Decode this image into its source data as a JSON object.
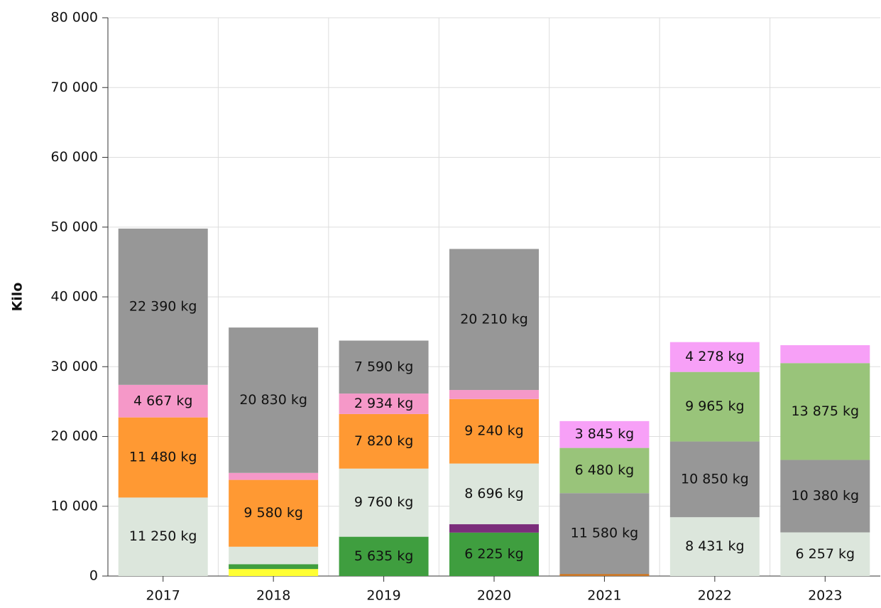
{
  "chart_data": {
    "type": "stacked_bar",
    "y_label": "Kilo",
    "categories": [
      "2017",
      "2018",
      "2019",
      "2020",
      "2021",
      "2022",
      "2023"
    ],
    "ylim": [
      0,
      80000
    ],
    "yticks": [
      {
        "value": 0,
        "label": "0"
      },
      {
        "value": 10000,
        "label": "10 000"
      },
      {
        "value": 20000,
        "label": "20 000"
      },
      {
        "value": 30000,
        "label": "30 000"
      },
      {
        "value": 40000,
        "label": "40 000"
      },
      {
        "value": 50000,
        "label": "50 000"
      },
      {
        "value": 60000,
        "label": "60 000"
      },
      {
        "value": 70000,
        "label": "70 000"
      },
      {
        "value": 80000,
        "label": "80 000"
      }
    ],
    "grid": true,
    "series": [
      {
        "color": "#ffff33",
        "values": [
          null,
          1000,
          null,
          null,
          null,
          null,
          null
        ],
        "value_labels": [
          null,
          null,
          null,
          null,
          null,
          null,
          null
        ]
      },
      {
        "color": "#3f9e3f",
        "values": [
          null,
          700,
          5635,
          6225,
          null,
          null,
          null
        ],
        "value_labels": [
          null,
          null,
          "5 635 kg",
          "6 225 kg",
          null,
          null,
          null
        ]
      },
      {
        "color": "#7b2d7b",
        "values": [
          null,
          null,
          null,
          1200,
          null,
          null,
          null
        ],
        "value_labels": [
          null,
          null,
          null,
          null,
          null,
          null,
          null
        ]
      },
      {
        "color": "#c8782a",
        "values": [
          null,
          null,
          null,
          null,
          300,
          null,
          null
        ],
        "value_labels": [
          null,
          null,
          null,
          null,
          null,
          null,
          null
        ]
      },
      {
        "color": "#dce6dc",
        "values": [
          11250,
          2500,
          9760,
          8696,
          null,
          8431,
          6257
        ],
        "value_labels": [
          "11 250 kg",
          null,
          "9 760 kg",
          "8 696 kg",
          null,
          "8 431 kg",
          "6 257 kg"
        ]
      },
      {
        "color": "#ff9933",
        "values": [
          11480,
          9580,
          7820,
          9240,
          null,
          null,
          null
        ],
        "value_labels": [
          "11 480 kg",
          "9 580 kg",
          "7 820 kg",
          "9 240 kg",
          null,
          null,
          null
        ]
      },
      {
        "color": "#f598c8",
        "values": [
          4667,
          1000,
          2934,
          1300,
          null,
          null,
          null
        ],
        "value_labels": [
          "4 667 kg",
          null,
          "2 934 kg",
          null,
          null,
          null,
          null
        ]
      },
      {
        "color": "#979797",
        "values": [
          22390,
          20830,
          7590,
          20210,
          11580,
          10850,
          10380
        ],
        "value_labels": [
          "22 390 kg",
          "20 830 kg",
          "7 590 kg",
          "20 210 kg",
          "11 580 kg",
          "10 850 kg",
          "10 380 kg"
        ]
      },
      {
        "color": "#99c47a",
        "values": [
          null,
          null,
          null,
          null,
          6480,
          9965,
          13875
        ],
        "value_labels": [
          null,
          null,
          null,
          null,
          "6 480 kg",
          "9 965 kg",
          "13 875 kg"
        ]
      },
      {
        "color": "#f7a0f7",
        "values": [
          null,
          null,
          null,
          null,
          3845,
          4278,
          2570
        ],
        "value_labels": [
          null,
          null,
          null,
          null,
          "3 845 kg",
          "4 278 kg",
          null
        ]
      }
    ]
  }
}
